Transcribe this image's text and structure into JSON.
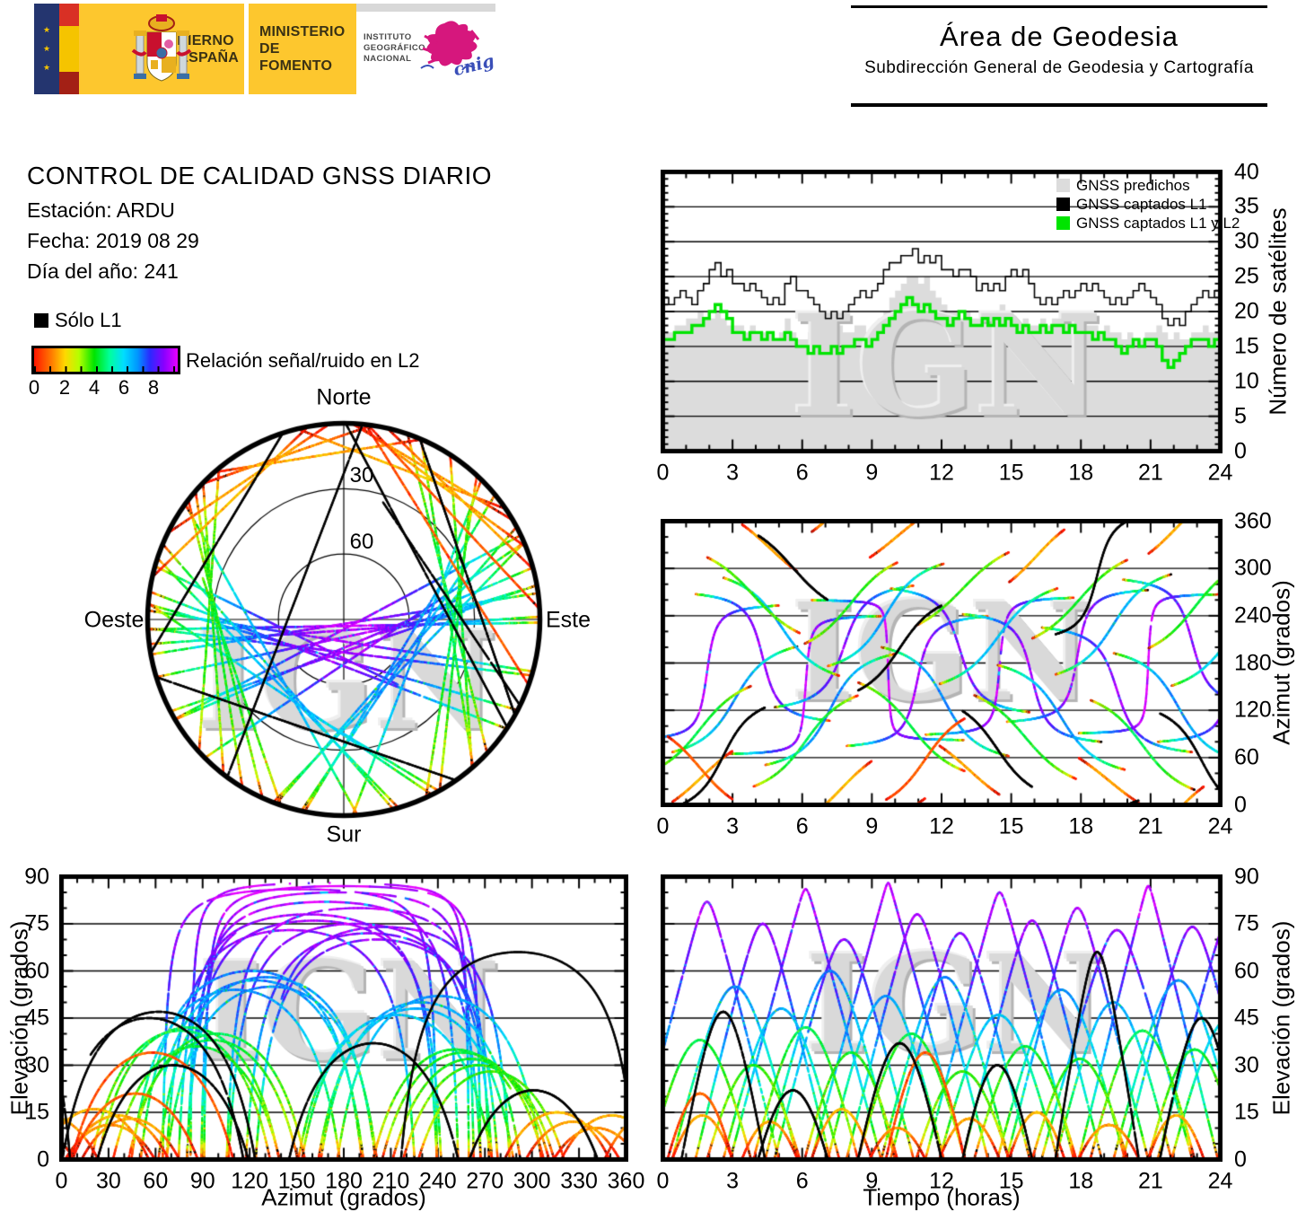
{
  "page": {
    "watermark": "IGN"
  },
  "header": {
    "gobierno_line1": "GOBIERNO",
    "gobierno_line2": "DE ESPAÑA",
    "ministerio_line1": "MINISTERIO",
    "ministerio_line2": "DE FOMENTO",
    "instituto_line1": "INSTITUTO",
    "instituto_line2": "GEOGRÁFICO",
    "instituto_line3": "NACIONAL",
    "cnig": "cnig",
    "area_title": "Área de Geodesia",
    "area_subtitle": "Subdirección General de Geodesia y Cartografía"
  },
  "info": {
    "title": "CONTROL DE CALIDAD GNSS DIARIO",
    "station": "Estación: ARDU",
    "date": "Fecha: 2019 08 29",
    "doy": "Día del año: 241"
  },
  "legend": {
    "l1_only": "Sólo L1",
    "snr_label": "Relación señal/ruido en L2",
    "snr_ticks": [
      "0",
      "2",
      "4",
      "6",
      "8"
    ]
  },
  "skyplot": {
    "north": "Norte",
    "south": "Sur",
    "west": "Oeste",
    "east": "Este",
    "ring_labels": [
      "30",
      "60"
    ]
  },
  "colors": {
    "predicted_gray": "#dcdcdc",
    "captured_green": "#00e400",
    "captured_black": "#000000",
    "gold": "#fdc72e",
    "navy": "#24356f",
    "flag_red": "#d93025",
    "cnig_pink": "#d6177d",
    "cnig_blue": "#3a4fb8",
    "watermark_gray": "#d9d9d9"
  },
  "chart_data": {
    "charts": [
      {
        "id": "sat_count",
        "type": "area",
        "ylabel": "Número de satélites",
        "xlim": [
          0,
          24
        ],
        "ylim": [
          0,
          40
        ],
        "xticks": [
          0,
          3,
          6,
          9,
          12,
          15,
          18,
          21,
          24
        ],
        "yticks": [
          0,
          5,
          10,
          15,
          20,
          25,
          30,
          35,
          40
        ],
        "grid": "horizontal",
        "legend_position": "top-right",
        "x_step_hours": 0.25,
        "series": [
          {
            "name": "GNSS predichos",
            "style": "area",
            "color": "#dcdcdc",
            "values": [
              17,
              17,
              18,
              18,
              19,
              19,
              20,
              19,
              19,
              20,
              19,
              18,
              18,
              18,
              17,
              18,
              17,
              17,
              17,
              16,
              17,
              19,
              17,
              16,
              16,
              17,
              16,
              16,
              17,
              17,
              18,
              17,
              17,
              18,
              18,
              17,
              18,
              19,
              20,
              22,
              23,
              24,
              25,
              25,
              24,
              25,
              23,
              22,
              21,
              20,
              20,
              19,
              20,
              19,
              19,
              20,
              19,
              20,
              21,
              20,
              19,
              18,
              19,
              18,
              18,
              19,
              18,
              19,
              19,
              20,
              20,
              19,
              19,
              18,
              18,
              17,
              18,
              17,
              17,
              16,
              17,
              16,
              16,
              17,
              17,
              18,
              17,
              16,
              17,
              16,
              16,
              17,
              17,
              18,
              17,
              17,
              17
            ]
          },
          {
            "name": "GNSS captados L1",
            "style": "step",
            "color": "#000000",
            "values": [
              22,
              21,
              22,
              23,
              22,
              21,
              23,
              24,
              26,
              27,
              25,
              26,
              24,
              24,
              23,
              24,
              23,
              22,
              21,
              22,
              21,
              24,
              25,
              23,
              23,
              22,
              21,
              20,
              19,
              20,
              19,
              20,
              21,
              22,
              23,
              22,
              23,
              24,
              26,
              27,
              27,
              28,
              28,
              29,
              27,
              28,
              27,
              28,
              26,
              26,
              25,
              26,
              26,
              25,
              23,
              24,
              23,
              24,
              23,
              25,
              26,
              25,
              26,
              24,
              22,
              21,
              22,
              21,
              22,
              23,
              22,
              23,
              24,
              23,
              24,
              23,
              22,
              21,
              22,
              21,
              22,
              23,
              24,
              23,
              22,
              21,
              19,
              18,
              19,
              18,
              20,
              21,
              22,
              23,
              22,
              23,
              22
            ]
          },
          {
            "name": "GNSS captados L1 y L2",
            "style": "step",
            "color": "#00e400",
            "values": [
              16,
              16,
              17,
              17,
              17,
              18,
              18,
              19,
              20,
              21,
              20,
              19,
              17,
              17,
              16,
              17,
              17,
              16,
              17,
              16,
              16,
              17,
              16,
              15,
              15,
              14,
              15,
              14,
              14,
              15,
              14,
              15,
              15,
              16,
              16,
              15,
              16,
              17,
              18,
              19,
              20,
              21,
              22,
              21,
              20,
              21,
              20,
              19,
              19,
              18,
              19,
              20,
              19,
              18,
              18,
              19,
              18,
              19,
              18,
              19,
              18,
              17,
              18,
              17,
              17,
              18,
              17,
              18,
              18,
              17,
              18,
              17,
              17,
              17,
              16,
              17,
              16,
              16,
              15,
              14,
              15,
              16,
              15,
              16,
              16,
              15,
              13,
              12,
              13,
              14,
              15,
              16,
              16,
              16,
              15,
              16,
              16
            ]
          }
        ]
      },
      {
        "id": "az_time",
        "type": "tracks",
        "ylabel": "Azimut (grados)",
        "xlim": [
          0,
          24
        ],
        "ylim": [
          0,
          360
        ],
        "xticks": [
          0,
          3,
          6,
          9,
          12,
          15,
          18,
          21,
          24
        ],
        "yticks": [
          0,
          60,
          120,
          180,
          240,
          300,
          360
        ],
        "grid": "horizontal"
      },
      {
        "id": "el_az",
        "type": "tracks",
        "xlabel": "Azimut (grados)",
        "ylabel": "Elevación (grados)",
        "xlim": [
          0,
          360
        ],
        "ylim": [
          0,
          90
        ],
        "xticks": [
          0,
          30,
          60,
          90,
          120,
          150,
          180,
          210,
          240,
          270,
          300,
          330,
          360
        ],
        "yticks": [
          0,
          15,
          30,
          45,
          60,
          75,
          90
        ],
        "grid": "horizontal"
      },
      {
        "id": "el_time",
        "type": "tracks",
        "xlabel": "Tiempo (horas)",
        "ylabel": "Elevación (grados)",
        "xlim": [
          0,
          24
        ],
        "ylim": [
          0,
          90
        ],
        "xticks": [
          0,
          3,
          6,
          9,
          12,
          15,
          18,
          21,
          24
        ],
        "yticks": [
          0,
          15,
          30,
          45,
          60,
          75,
          90
        ],
        "grid": "horizontal"
      },
      {
        "id": "skyplot",
        "type": "skyplot",
        "elevation_rings": [
          30,
          60
        ],
        "cardinal": [
          "Norte",
          "Este",
          "Sur",
          "Oeste"
        ]
      }
    ],
    "colormap": [
      [
        0.0,
        "#ff1500"
      ],
      [
        1.1,
        "#ff7800"
      ],
      [
        2.0,
        "#ffd800"
      ],
      [
        2.9,
        "#b4ff00"
      ],
      [
        3.9,
        "#00e400"
      ],
      [
        4.9,
        "#00ff9d"
      ],
      [
        5.8,
        "#00ddff"
      ],
      [
        6.7,
        "#0096ff"
      ],
      [
        7.5,
        "#2a2aff"
      ],
      [
        8.4,
        "#8800ff"
      ],
      [
        9.3,
        "#e600ff"
      ]
    ],
    "colorbar_range": [
      0,
      9.3
    ],
    "satellite_passes": [
      {
        "t": -1.2,
        "d": 6.2,
        "a": 168,
        "e": 82,
        "r": 1,
        "b": 9.3
      },
      {
        "t": 1.4,
        "d": 5.8,
        "a": 187,
        "e": 75,
        "r": -1,
        "b": 9.3
      },
      {
        "t": 2.9,
        "d": 6.5,
        "a": 152,
        "e": 86,
        "r": 1,
        "b": 9.3
      },
      {
        "t": 4.8,
        "d": 6.0,
        "a": 201,
        "e": 70,
        "r": 1,
        "b": 9.3
      },
      {
        "t": 6.4,
        "d": 6.6,
        "a": 171,
        "e": 88,
        "r": -1,
        "b": 9.3
      },
      {
        "t": 7.9,
        "d": 6.1,
        "a": 157,
        "e": 78,
        "r": 1,
        "b": 9.3
      },
      {
        "t": 9.8,
        "d": 6.0,
        "a": 196,
        "e": 72,
        "r": -1,
        "b": 9.3
      },
      {
        "t": 11.3,
        "d": 6.4,
        "a": 176,
        "e": 85,
        "r": 1,
        "b": 9.3
      },
      {
        "t": 12.9,
        "d": 6.0,
        "a": 161,
        "e": 76,
        "r": -1,
        "b": 9.3
      },
      {
        "t": 14.8,
        "d": 6.1,
        "a": 189,
        "e": 80,
        "r": 1,
        "b": 9.3
      },
      {
        "t": 16.3,
        "d": 6.5,
        "a": 146,
        "e": 73,
        "r": -1,
        "b": 9.3
      },
      {
        "t": 17.9,
        "d": 6.0,
        "a": 179,
        "e": 87,
        "r": 1,
        "b": 9.3
      },
      {
        "t": 19.8,
        "d": 6.0,
        "a": 206,
        "e": 74,
        "r": -1,
        "b": 9.3
      },
      {
        "t": 21.3,
        "d": 6.4,
        "a": 163,
        "e": 79,
        "r": 1,
        "b": 9.3
      },
      {
        "t": 0.4,
        "d": 5.4,
        "a": 134,
        "e": 55,
        "r": 1,
        "b": 8.2
      },
      {
        "t": 2.6,
        "d": 5.0,
        "a": 226,
        "e": 48,
        "r": -1,
        "b": 8.2
      },
      {
        "t": 4.4,
        "d": 5.6,
        "a": 121,
        "e": 60,
        "r": 1,
        "b": 8.2
      },
      {
        "t": 7.1,
        "d": 5.0,
        "a": 241,
        "e": 52,
        "r": 1,
        "b": 8.2
      },
      {
        "t": 9.4,
        "d": 5.5,
        "a": 131,
        "e": 58,
        "r": -1,
        "b": 8.2
      },
      {
        "t": 11.9,
        "d": 5.1,
        "a": 214,
        "e": 46,
        "r": 1,
        "b": 8.2
      },
      {
        "t": 14.4,
        "d": 5.5,
        "a": 111,
        "e": 54,
        "r": -1,
        "b": 8.2
      },
      {
        "t": 16.9,
        "d": 5.0,
        "a": 229,
        "e": 50,
        "r": 1,
        "b": 8.2
      },
      {
        "t": 19.4,
        "d": 5.6,
        "a": 124,
        "e": 57,
        "r": -1,
        "b": 8.2
      },
      {
        "t": 21.9,
        "d": 5.0,
        "a": 211,
        "e": 45,
        "r": 1,
        "b": 8.2
      },
      {
        "t": -0.6,
        "d": 4.4,
        "a": 96,
        "e": 38,
        "r": 1,
        "b": 6.1
      },
      {
        "t": 1.9,
        "d": 4.0,
        "a": 266,
        "e": 30,
        "r": -1,
        "b": 6.1
      },
      {
        "t": 3.9,
        "d": 4.5,
        "a": 81,
        "e": 42,
        "r": 1,
        "b": 6.1
      },
      {
        "t": 6.1,
        "d": 4.0,
        "a": 256,
        "e": 34,
        "r": 1,
        "b": 6.1
      },
      {
        "t": 8.4,
        "d": 4.6,
        "a": 99,
        "e": 40,
        "r": -1,
        "b": 6.1
      },
      {
        "t": 10.9,
        "d": 4.0,
        "a": 274,
        "e": 28,
        "r": 1,
        "b": 6.1
      },
      {
        "t": 13.4,
        "d": 4.4,
        "a": 86,
        "e": 36,
        "r": -1,
        "b": 6.1
      },
      {
        "t": 15.9,
        "d": 4.1,
        "a": 261,
        "e": 32,
        "r": 1,
        "b": 6.1
      },
      {
        "t": 18.4,
        "d": 4.5,
        "a": 76,
        "e": 41,
        "r": -1,
        "b": 6.1
      },
      {
        "t": 20.9,
        "d": 4.0,
        "a": 251,
        "e": 35,
        "r": 1,
        "b": 6.1
      },
      {
        "t": 0.4,
        "d": 2.6,
        "a": 36,
        "e": 14,
        "r": 1,
        "b": 3.4
      },
      {
        "t": 3.4,
        "d": 2.4,
        "a": 326,
        "e": 12,
        "r": -1,
        "b": 3.4
      },
      {
        "t": 6.4,
        "d": 2.6,
        "a": 21,
        "e": 16,
        "r": 1,
        "b": 3.4
      },
      {
        "t": 8.9,
        "d": 2.4,
        "a": 341,
        "e": 10,
        "r": 1,
        "b": 3.4
      },
      {
        "t": 11.9,
        "d": 2.6,
        "a": 44,
        "e": 13,
        "r": -1,
        "b": 3.4
      },
      {
        "t": 14.9,
        "d": 2.4,
        "a": 316,
        "e": 15,
        "r": 1,
        "b": 3.4
      },
      {
        "t": 17.9,
        "d": 2.6,
        "a": 31,
        "e": 11,
        "r": -1,
        "b": 3.4
      },
      {
        "t": 20.9,
        "d": 2.4,
        "a": 351,
        "e": 14,
        "r": 1,
        "b": 3.4
      },
      {
        "t": 9.6,
        "d": 3.4,
        "a": 58,
        "e": 34,
        "r": 1,
        "b": 1.3
      },
      {
        "t": 0.2,
        "d": 2.8,
        "a": 47,
        "e": 21,
        "r": -1,
        "b": 1.6
      },
      {
        "t": 0.8,
        "d": 3.6,
        "a": 62,
        "e": 47,
        "r": 1,
        "b": "L1"
      },
      {
        "t": 4.1,
        "d": 3.0,
        "a": 301,
        "e": 22,
        "r": -1,
        "b": "L1"
      },
      {
        "t": 8.4,
        "d": 3.6,
        "a": 199,
        "e": 37,
        "r": 1,
        "b": "L1"
      },
      {
        "t": 12.9,
        "d": 3.0,
        "a": 71,
        "e": 30,
        "r": -1,
        "b": "L1"
      },
      {
        "t": 16.9,
        "d": 3.6,
        "a": 291,
        "e": 66,
        "r": 1,
        "b": "L1"
      },
      {
        "t": 21.4,
        "d": 3.6,
        "a": 56,
        "e": 45,
        "r": -1,
        "b": "L1"
      }
    ]
  }
}
